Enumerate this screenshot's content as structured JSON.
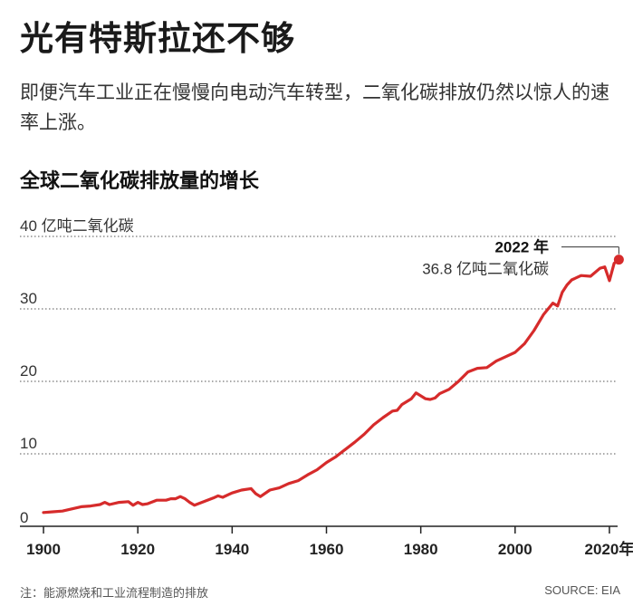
{
  "headline": "光有特斯拉还不够",
  "subhead": "即便汽车工业正在慢慢向电动汽车转型，二氧化碳排放仍然以惊人的速率上涨。",
  "footnote": "注：能源燃烧和工业流程制造的排放",
  "source": "SOURCE: EIA",
  "colors": {
    "line": "#d62b2b",
    "grid": "#555555",
    "text": "#222222"
  },
  "chart_data": {
    "type": "line",
    "title": "全球二氧化碳排放量的增长",
    "ylabel": "40 亿吨二氧化碳",
    "ylim": [
      0,
      40
    ],
    "xlim": [
      1895,
      2025
    ],
    "y_ticks": [
      0,
      10,
      20,
      30
    ],
    "x_ticks": [
      1900,
      1920,
      1940,
      1960,
      1980,
      2000,
      2020
    ],
    "x_tick_labels": [
      "1900",
      "1920",
      "1940",
      "1960",
      "1980",
      "2000",
      "2020年"
    ],
    "grid": true,
    "annotation": {
      "x": 2022,
      "y": 36.8,
      "label_year": "2022 年",
      "label_value": "36.8 亿吨二氧化碳"
    },
    "series": [
      {
        "x": [
          1900,
          1902,
          1904,
          1906,
          1908,
          1910,
          1912,
          1913,
          1914,
          1916,
          1918,
          1919,
          1920,
          1921,
          1922,
          1924,
          1926,
          1927,
          1928,
          1929,
          1930,
          1931,
          1932,
          1934,
          1936,
          1937,
          1938,
          1940,
          1942,
          1944,
          1945,
          1946,
          1948,
          1950,
          1952,
          1954,
          1956,
          1958,
          1960,
          1962,
          1964,
          1966,
          1968,
          1970,
          1972,
          1974,
          1975,
          1976,
          1978,
          1979,
          1980,
          1981,
          1982,
          1983,
          1984,
          1986,
          1988,
          1990,
          1992,
          1994,
          1996,
          1998,
          2000,
          2002,
          2004,
          2006,
          2008,
          2009,
          2010,
          2011,
          2012,
          2014,
          2016,
          2018,
          2019,
          2020,
          2021,
          2022
        ],
        "y": [
          1.9,
          2.0,
          2.1,
          2.4,
          2.7,
          2.8,
          3.0,
          3.3,
          3.0,
          3.3,
          3.4,
          2.9,
          3.3,
          3.0,
          3.1,
          3.6,
          3.6,
          3.8,
          3.8,
          4.1,
          3.8,
          3.3,
          2.9,
          3.4,
          3.9,
          4.2,
          4.0,
          4.6,
          5.0,
          5.2,
          4.5,
          4.1,
          5.0,
          5.3,
          5.9,
          6.3,
          7.1,
          7.8,
          8.8,
          9.6,
          10.6,
          11.6,
          12.7,
          14.0,
          15.0,
          15.9,
          16.0,
          16.8,
          17.6,
          18.4,
          18.0,
          17.6,
          17.5,
          17.7,
          18.3,
          18.9,
          20.0,
          21.3,
          21.8,
          21.9,
          22.8,
          23.4,
          24.0,
          25.2,
          27.0,
          29.2,
          30.8,
          30.4,
          32.3,
          33.3,
          34.0,
          34.6,
          34.5,
          35.6,
          35.8,
          33.9,
          36.3,
          36.8
        ]
      }
    ]
  }
}
